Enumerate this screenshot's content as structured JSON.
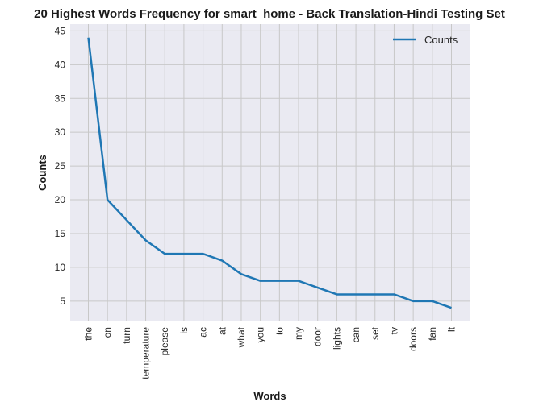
{
  "chart_data": {
    "type": "line",
    "title": "20 Highest Words Frequency for smart_home - Back Translation-Hindi Testing Set",
    "xlabel": "Words",
    "ylabel": "Counts",
    "categories": [
      "the",
      "on",
      "turn",
      "temperature",
      "please",
      "is",
      "ac",
      "at",
      "what",
      "you",
      "to",
      "my",
      "door",
      "lights",
      "can",
      "set",
      "tv",
      "doors",
      "fan",
      "it"
    ],
    "series": [
      {
        "name": "Counts",
        "values": [
          44,
          20,
          17,
          14,
          12,
          12,
          12,
          11,
          9,
          8,
          8,
          8,
          7,
          6,
          6,
          6,
          6,
          5,
          5,
          4
        ]
      }
    ],
    "ylim": [
      2.0,
      46.0
    ],
    "yticks": [
      5,
      10,
      15,
      20,
      25,
      30,
      35,
      40,
      45
    ],
    "grid": true,
    "legend": "top-right",
    "colors": {
      "line": "#1f77b4",
      "plot_bg": "#eaeaf2",
      "grid": "#c8c8c8"
    }
  }
}
